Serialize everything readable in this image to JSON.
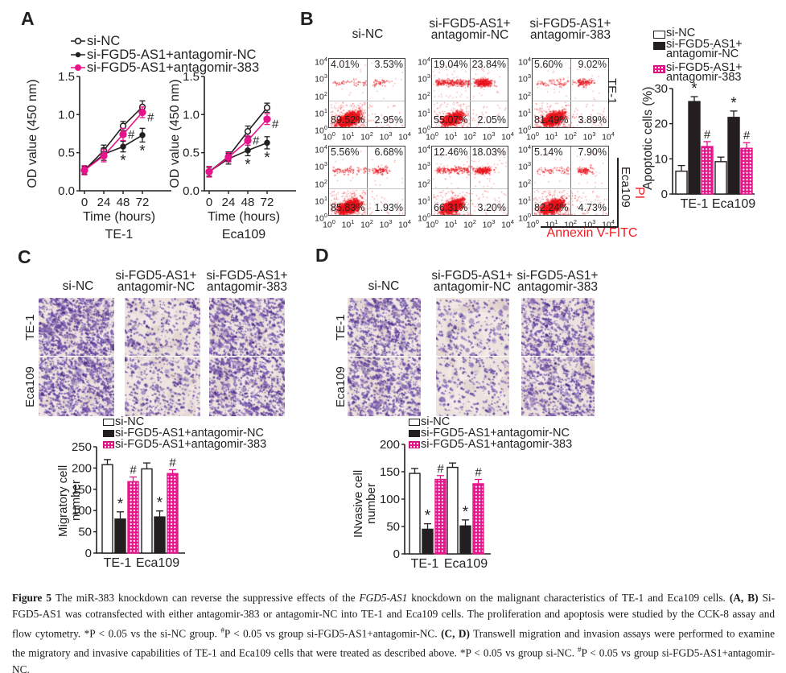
{
  "colors": {
    "black": "#231f20",
    "pink": "#e6138a",
    "red": "#ed1c24",
    "purple": "#6c4fa3"
  },
  "panel_a": {
    "label": "A",
    "legend": [
      {
        "label": "si-NC",
        "marker": "open"
      },
      {
        "label": "si-FGD5-AS1+antagomir-NC",
        "marker": "black"
      },
      {
        "label": "si-FGD5-AS1+antagomir-383",
        "marker": "pink"
      }
    ],
    "ylabel": "OD value (450 nm)",
    "xlabel": "Time (hours)",
    "yticks": [
      "0.0",
      "0.5",
      "1.0",
      "1.5"
    ],
    "xticks": [
      "0",
      "24",
      "48",
      "72"
    ],
    "charts": [
      {
        "title": "TE-1",
        "series": [
          {
            "name": "si-NC",
            "values": [
              0.27,
              0.53,
              0.85,
              1.1
            ],
            "err": [
              0.05,
              0.07,
              0.06,
              0.08
            ]
          },
          {
            "name": "si-FGD5-AS1+antagomir-NC",
            "values": [
              0.27,
              0.48,
              0.58,
              0.73
            ],
            "err": [
              0.05,
              0.08,
              0.07,
              0.09
            ]
          },
          {
            "name": "si-FGD5-AS1+antagomir-383",
            "values": [
              0.27,
              0.46,
              0.74,
              1.03
            ],
            "err": [
              0.06,
              0.08,
              0.08,
              0.07
            ]
          }
        ]
      },
      {
        "title": "Eca109",
        "series": [
          {
            "name": "si-NC",
            "values": [
              0.25,
              0.45,
              0.78,
              1.09
            ],
            "err": [
              0.06,
              0.06,
              0.07,
              0.06
            ]
          },
          {
            "name": "si-FGD5-AS1+antagomir-NC",
            "values": [
              0.25,
              0.42,
              0.53,
              0.63
            ],
            "err": [
              0.06,
              0.07,
              0.07,
              0.08
            ]
          },
          {
            "name": "si-FGD5-AS1+antagomir-383",
            "values": [
              0.25,
              0.44,
              0.66,
              0.94
            ],
            "err": [
              0.07,
              0.06,
              0.06,
              0.07
            ]
          }
        ]
      }
    ],
    "sig_star": "*",
    "sig_hash": "#"
  },
  "panel_b": {
    "label": "B",
    "col_titles": [
      [
        "si-NC"
      ],
      [
        "si-FGD5-AS1+",
        "antagomir-NC"
      ],
      [
        "si-FGD5-AS1+",
        "antagomir-383"
      ]
    ],
    "row_titles": [
      "TE-1",
      "Eca109"
    ],
    "x_axis_label": "Annexin V-FITC",
    "y_axis_label": "PI",
    "log_exponents": [
      "0",
      "1",
      "2",
      "3",
      "4"
    ],
    "plots": [
      {
        "ul": "4.01%",
        "ur": "3.53%",
        "ll": "89.52%",
        "lr": "2.95%"
      },
      {
        "ul": "19.04%",
        "ur": "23.84%",
        "ll": "55.07%",
        "lr": "2.05%"
      },
      {
        "ul": "5.60%",
        "ur": "9.02%",
        "ll": "81.49%",
        "lr": "3.89%"
      },
      {
        "ul": "5.56%",
        "ur": "6.68%",
        "ll": "85.83%",
        "lr": "1.93%"
      },
      {
        "ul": "12.46%",
        "ur": "18.03%",
        "ll": "66.31%",
        "lr": "3.20%"
      },
      {
        "ul": "5.14%",
        "ur": "7.90%",
        "ll": "82.24%",
        "lr": "4.73%"
      }
    ],
    "bar_chart": {
      "ylabel": "Apoptotic cells (%)",
      "yticks": [
        "0",
        "10",
        "20",
        "30"
      ],
      "groups": [
        "TE-1",
        "Eca109"
      ],
      "series": [
        {
          "name": "si-NC",
          "values": [
            6.5,
            9.2
          ],
          "err": [
            1.6,
            1.3
          ],
          "sig": ""
        },
        {
          "name": "si-FGD5-AS1+antagomir-NC",
          "values": [
            26.3,
            21.8
          ],
          "err": [
            1.4,
            1.8
          ],
          "sig": "*"
        },
        {
          "name": "si-FGD5-AS1+antagomir-383",
          "values": [
            13.5,
            13.0
          ],
          "err": [
            1.4,
            1.6
          ],
          "sig": "#"
        }
      ],
      "legend": [
        [
          "si-NC"
        ],
        [
          "si-FGD5-AS1+",
          "antagomir-NC"
        ],
        [
          "si-FGD5-AS1+",
          "antagomir-383"
        ]
      ]
    }
  },
  "panel_c": {
    "label": "C",
    "col_titles": [
      [
        "si-NC"
      ],
      [
        "si-FGD5-AS1+",
        "antagomir-NC"
      ],
      [
        "si-FGD5-AS1+",
        "antagomir-383"
      ]
    ],
    "row_titles": [
      "TE-1",
      "Eca109"
    ],
    "image_densities": [
      [
        950,
        350,
        780
      ],
      [
        900,
        380,
        830
      ]
    ],
    "legend": [
      "si-NC",
      "si-FGD5-AS1+antagomir-NC",
      "si-FGD5-AS1+antagomir-383"
    ],
    "bar_chart": {
      "ylabel": [
        "Migratory cell",
        "number"
      ],
      "yticks": [
        "0",
        "50",
        "100",
        "150",
        "200",
        "250"
      ],
      "groups": [
        "TE-1",
        "Eca109"
      ],
      "series": [
        {
          "name": "si-NC",
          "values": [
            208,
            198
          ],
          "err": [
            12,
            14
          ],
          "sig": ""
        },
        {
          "name": "si-FGD5-AS1+antagomir-NC",
          "values": [
            80,
            85
          ],
          "err": [
            17,
            14
          ],
          "sig": "*"
        },
        {
          "name": "si-FGD5-AS1+antagomir-383",
          "values": [
            168,
            187
          ],
          "err": [
            11,
            9
          ],
          "sig": "#"
        }
      ]
    }
  },
  "panel_d": {
    "label": "D",
    "col_titles": [
      [
        "si-NC"
      ],
      [
        "si-FGD5-AS1+",
        "antagomir-NC"
      ],
      [
        "si-FGD5-AS1+",
        "antagomir-383"
      ]
    ],
    "row_titles": [
      "TE-1",
      "Eca109"
    ],
    "image_densities": [
      [
        700,
        280,
        650
      ],
      [
        720,
        290,
        620
      ]
    ],
    "legend": [
      "si-NC",
      "si-FGD5-AS1+antagomir-NC",
      "si-FGD5-AS1+antagomir-383"
    ],
    "bar_chart": {
      "ylabel": [
        "INvasive cell",
        "number"
      ],
      "yticks": [
        "0",
        "50",
        "100",
        "150",
        "200"
      ],
      "groups": [
        "TE-1",
        "Eca109"
      ],
      "series": [
        {
          "name": "si-NC",
          "values": [
            147,
            158
          ],
          "err": [
            9,
            8
          ],
          "sig": ""
        },
        {
          "name": "si-FGD5-AS1+antagomir-NC",
          "values": [
            45,
            51
          ],
          "err": [
            10,
            11
          ],
          "sig": "*"
        },
        {
          "name": "si-FGD5-AS1+antagomir-383",
          "values": [
            136,
            128
          ],
          "err": [
            7,
            8
          ],
          "sig": "#"
        }
      ]
    }
  },
  "caption": {
    "lines": [
      [
        {
          "t": "Figure 5 ",
          "b": 1
        },
        {
          "t": "The miR-383 knockdown can reverse the suppressive effects of the "
        },
        {
          "t": "FGD5-AS1",
          "i": 1
        },
        {
          "t": " knockdown on the malignant characteristics of TE-1 and Eca109 cells. "
        },
        {
          "t": "(A, B)",
          "b": 1
        },
        {
          "t": " Si-"
        }
      ],
      [
        {
          "t": "FGD5-AS1 was cotransfected with either antagomir-383 or antagomir-NC into TE-1 and Eca109 cells. The proliferation and apoptosis were studied by the CCK-8 assay and"
        }
      ],
      [
        {
          "t": "flow cytometry. *P < 0.05 vs the si-NC group. "
        },
        {
          "t": "#",
          "sup": 1
        },
        {
          "t": "P < 0.05 vs group si-FGD5-AS1+antagomir-NC. "
        },
        {
          "t": "(C, D)",
          "b": 1
        },
        {
          "t": " Transwell migration and invasion assays were performed to examine"
        }
      ],
      [
        {
          "t": "the migratory and invasive capabilities of TE-1 and Eca109 cells that were treated as described above. *P < 0.05 vs group si-NC. "
        },
        {
          "t": "#",
          "sup": 1
        },
        {
          "t": "P < 0.05 vs group si-FGD5-AS1+antagomir-"
        }
      ],
      [
        {
          "t": "NC."
        }
      ]
    ]
  }
}
